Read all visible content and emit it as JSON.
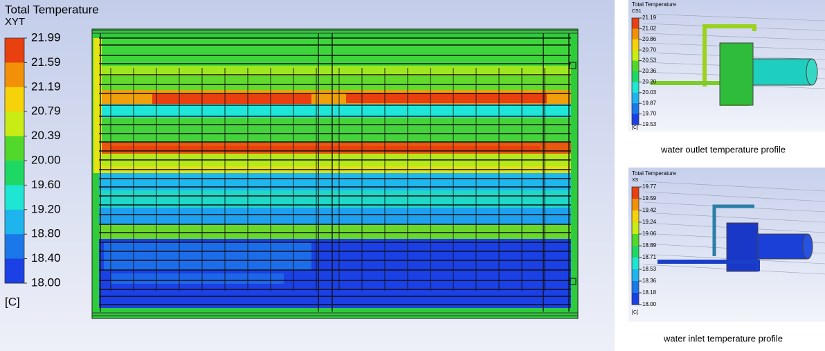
{
  "main": {
    "legend_title": "Total Temperature",
    "legend_subtitle": "XYT",
    "levels": [
      "21.99",
      "21.59",
      "21.19",
      "20.79",
      "20.39",
      "20.00",
      "19.60",
      "19.20",
      "18.80",
      "18.40",
      "18.00"
    ],
    "unit": "[C]"
  },
  "outlet": {
    "legend_title": "Total Temperature",
    "legend_subtitle": "CS1",
    "levels": [
      "21.19",
      "21.02",
      "20.86",
      "20.70",
      "20.53",
      "20.36",
      "20.20",
      "20.03",
      "19.87",
      "19.70",
      "19.53"
    ],
    "unit": "[C]",
    "caption": "water outlet temperature profile"
  },
  "inlet": {
    "legend_title": "Total Temperature",
    "legend_subtitle": "XS",
    "levels": [
      "19.77",
      "19.59",
      "19.42",
      "19.24",
      "19.06",
      "18.89",
      "18.71",
      "18.53",
      "18.36",
      "18.18",
      "18.00"
    ],
    "unit": "[C]",
    "caption": "water inlet temperature profile"
  }
}
